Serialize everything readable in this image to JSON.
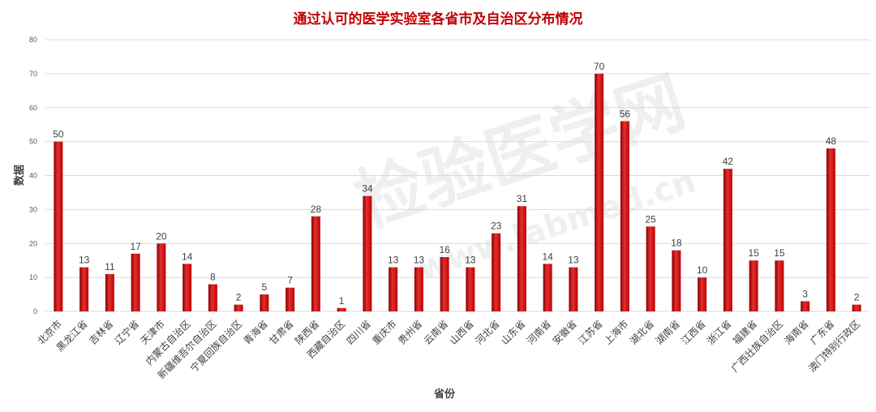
{
  "chart_data": {
    "type": "bar",
    "title": "通过认可的医学实验室各省市及自治区分布情况",
    "xlabel": "省份",
    "ylabel": "数据",
    "ylim": [
      0,
      80
    ],
    "yticks": [
      0,
      10,
      20,
      30,
      40,
      50,
      60,
      70,
      80
    ],
    "grid": true,
    "legend": "none",
    "categories": [
      "北京市",
      "黑龙江省",
      "吉林省",
      "辽宁省",
      "天津市",
      "内蒙古自治区",
      "新疆维吾尔自治区",
      "宁夏回族自治区",
      "青海省",
      "甘肃省",
      "陕西省",
      "西藏自治区",
      "四川省",
      "重庆市",
      "贵州省",
      "云南省",
      "山西省",
      "河北省",
      "山东省",
      "河南省",
      "安徽省",
      "江苏省",
      "上海市",
      "湖北省",
      "湖南省",
      "江西省",
      "浙江省",
      "福建省",
      "广西壮族自治区",
      "海南省",
      "广东省",
      "澳门特别行政区"
    ],
    "values": [
      50,
      13,
      11,
      17,
      20,
      14,
      8,
      2,
      5,
      7,
      28,
      1,
      34,
      13,
      13,
      16,
      13,
      23,
      31,
      14,
      13,
      70,
      56,
      25,
      18,
      10,
      42,
      15,
      15,
      3,
      48,
      2
    ],
    "colors": {
      "bar": "#c00000",
      "bar_light": "#e03030",
      "bar_dark": "#8e0000",
      "title": "#c00000",
      "grid": "#d9d9d9"
    }
  },
  "watermark": {
    "main": "检验医学网",
    "sub": "www.labmed.cn"
  }
}
